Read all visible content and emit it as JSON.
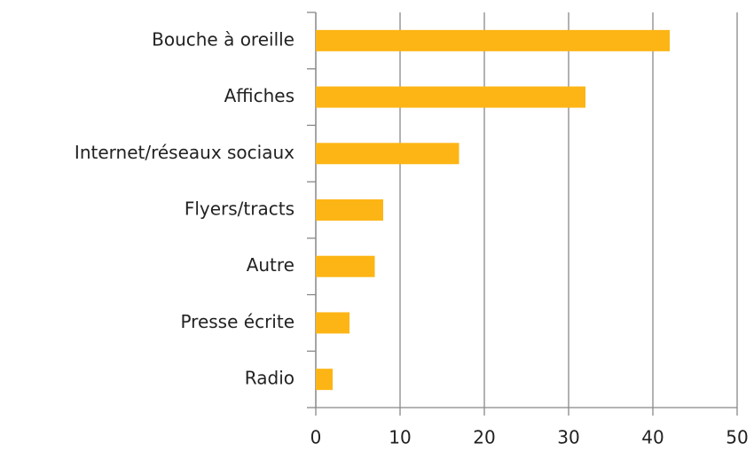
{
  "chart_data": {
    "type": "bar",
    "orientation": "horizontal",
    "categories": [
      "Bouche à oreille",
      "Affiches",
      "Internet/réseaux sociaux",
      "Flyers/tracts",
      "Autre",
      "Presse écrite",
      "Radio"
    ],
    "values": [
      42,
      32,
      17,
      8,
      7,
      4,
      2
    ],
    "color": "#fdb515",
    "xlim": [
      0,
      50
    ],
    "xticks": [
      0,
      10,
      20,
      30,
      40,
      50
    ],
    "grid": true
  }
}
